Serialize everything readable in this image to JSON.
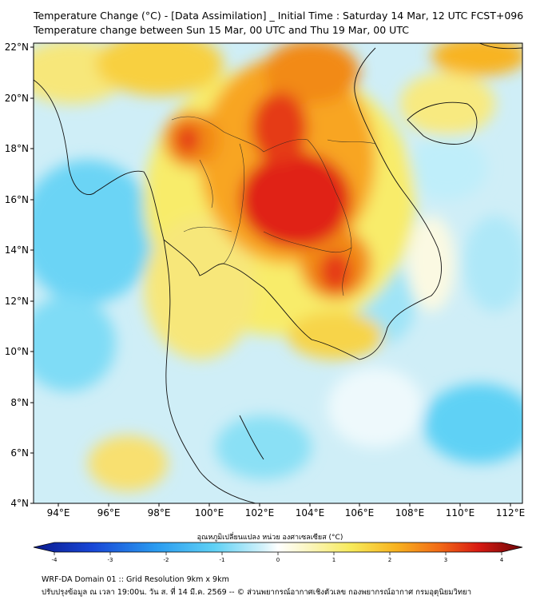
{
  "header": {
    "title_line1": "Temperature Change (°C) - [Data Assimilation] _ Initial Time : Saturday 14 Mar, 12 UTC FCST+096",
    "title_line2": "Temperature change between Sun 15 Mar, 00 UTC and Thu 19 Mar, 00 UTC"
  },
  "map": {
    "lat_ticks": [
      "22°N",
      "20°N",
      "18°N",
      "16°N",
      "14°N",
      "12°N",
      "10°N",
      "8°N",
      "6°N",
      "4°N"
    ],
    "lon_ticks": [
      "94°E",
      "96°E",
      "98°E",
      "100°E",
      "102°E",
      "104°E",
      "106°E",
      "108°E",
      "110°E",
      "112°E"
    ],
    "extent": {
      "lon": [
        93,
        112.5
      ],
      "lat": [
        4,
        22.2
      ]
    },
    "colors": {
      "land_line": "#111111",
      "ocean": "#cfeef7"
    }
  },
  "colorbar": {
    "label": "อุณหภูมิเปลี่ยนแปลง หน่วย องศาเซลเซียส (°C)",
    "ticks": [
      "-4",
      "-3",
      "-2",
      "-1",
      "0",
      "1",
      "2",
      "3",
      "4"
    ],
    "range": [
      -4,
      4
    ]
  },
  "footer": {
    "line1": "WRF-DA Domain 01 :: Grid Resolution 9km x 9km",
    "line2": "ปรับปรุงข้อมูล ณ เวลา 19:00น. วัน ส. ที่ 14 มี.ค. 2569 -- © ส่วนพยากรณ์อากาศเชิงตัวเลข กองพยากรณ์อากาศ กรมอุตุนิยมวิทยา"
  }
}
